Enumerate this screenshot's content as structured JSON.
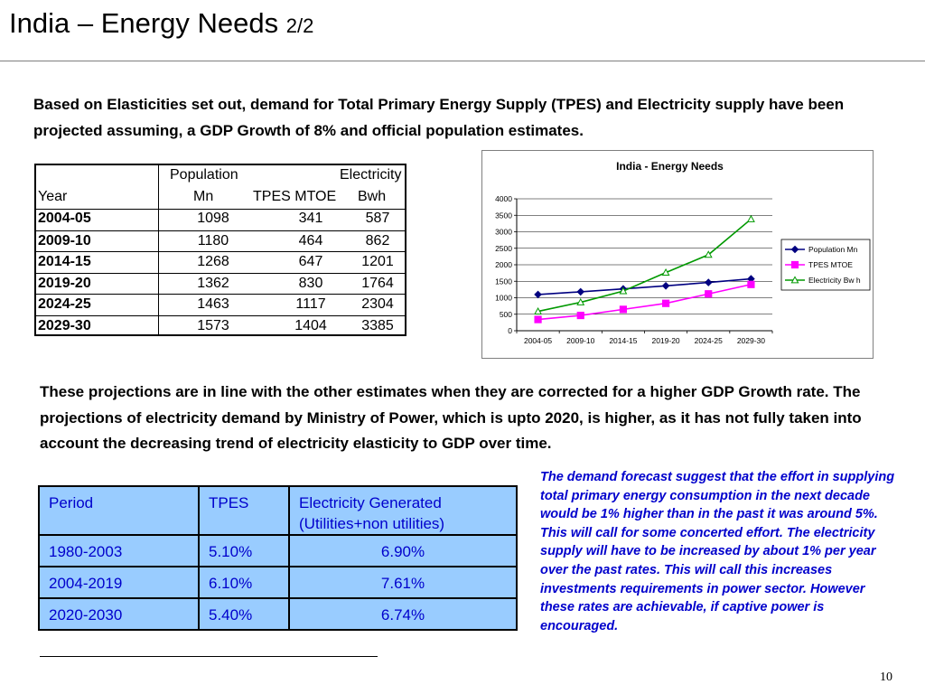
{
  "slide": {
    "title": "India – Energy Needs",
    "title_suffix": "2/2",
    "intro": "Based on Elasticities set out, demand for Total Primary Energy Supply (TPES) and Electricity supply have been projected assuming, a GDP Growth of 8% and official population estimates.",
    "paragraph2": "These projections are in line with the other estimates when they are corrected for a higher GDP Growth rate. The projections of electricity demand by Ministry of Power, which is upto 2020, is higher, as it has not fully taken into account the decreasing trend of electricity elasticity to GDP over time.",
    "note": "The demand forecast suggest that the effort in supplying total primary energy consumption in the next decade would be 1% higher than in the past it was around 5%.  This will call for some concerted effort.  The electricity supply will have to be increased by about 1% per year over the past rates. This will call this increases investments  requirements  in power sector. However these rates are achievable, if captive power is encouraged.",
    "page_number": "10"
  },
  "projection_table": {
    "headers": {
      "year": "Year",
      "population_top": "Population",
      "population_bottom": "Mn",
      "tpes": "TPES MTOE",
      "electricity_top": "Electricity",
      "electricity_bottom": "Bwh"
    },
    "rows": [
      {
        "year": "2004-05",
        "population": "1098",
        "tpes": "341",
        "electricity": "587"
      },
      {
        "year": "2009-10",
        "population": "1180",
        "tpes": "464",
        "electricity": "862"
      },
      {
        "year": "2014-15",
        "population": "1268",
        "tpes": "647",
        "electricity": "1201"
      },
      {
        "year": "2019-20",
        "population": "1362",
        "tpes": "830",
        "electricity": "1764"
      },
      {
        "year": "2024-25",
        "population": "1463",
        "tpes": "1117",
        "electricity": "2304"
      },
      {
        "year": "2029-30",
        "population": "1573",
        "tpes": "1404",
        "electricity": "3385"
      }
    ]
  },
  "rates_table": {
    "headers": {
      "period": "Period",
      "tpes": "TPES",
      "electricity": "Electricity Generated (Utilities+non utilities)"
    },
    "rows": [
      {
        "period": "1980-2003",
        "tpes": "5.10%",
        "electricity": "6.90%"
      },
      {
        "period": "2004-2019",
        "tpes": "6.10%",
        "electricity": "7.61%"
      },
      {
        "period": "2020-2030",
        "tpes": "5.40%",
        "electricity": "6.74%"
      }
    ],
    "colors": {
      "cell_bg": "#99ccff",
      "text": "#0000cc"
    }
  },
  "chart_data": {
    "type": "line",
    "title": "India - Energy Needs",
    "categories": [
      "2004-05",
      "2009-10",
      "2014-15",
      "2019-20",
      "2024-25",
      "2029-30"
    ],
    "ylim": [
      0,
      4000
    ],
    "yticks": [
      0,
      500,
      1000,
      1500,
      2000,
      2500,
      3000,
      3500,
      4000
    ],
    "grid": true,
    "legend": "right",
    "series": [
      {
        "name": "Population Mn",
        "values": [
          1098,
          1180,
          1268,
          1362,
          1463,
          1573
        ],
        "color": "#000080",
        "marker": "diamond"
      },
      {
        "name": "TPES MTOE",
        "values": [
          341,
          464,
          647,
          830,
          1117,
          1404
        ],
        "color": "#ff00ff",
        "marker": "square"
      },
      {
        "name": "Electricity Bw h",
        "values": [
          587,
          862,
          1201,
          1764,
          2304,
          3385
        ],
        "color": "#009900",
        "marker": "triangle"
      }
    ]
  }
}
